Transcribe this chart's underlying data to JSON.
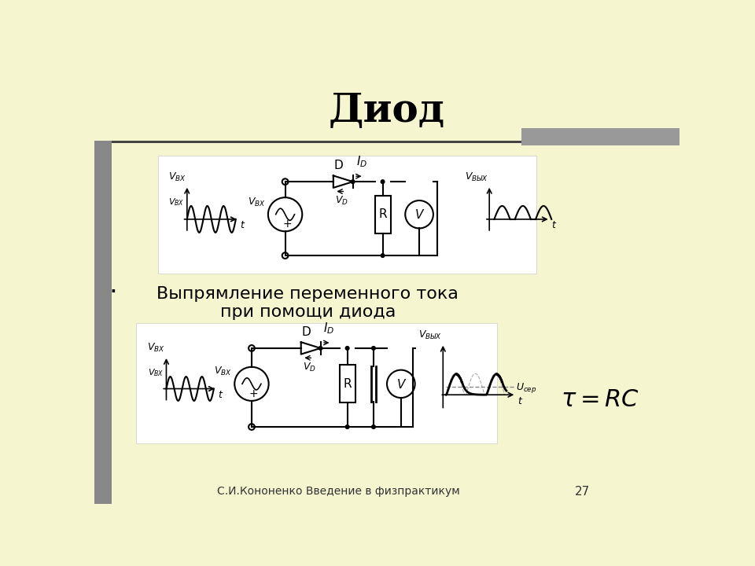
{
  "title": "Диод",
  "subtitle": "Выпрямление переменного тока\nпри помощи диода",
  "footer": "С.И.Кононенко Введение в физпрактикум",
  "page_number": "27",
  "bg_color": "#f5f5d0",
  "title_fontsize": 36,
  "subtitle_fontsize": 16,
  "formula_fontsize": 22
}
